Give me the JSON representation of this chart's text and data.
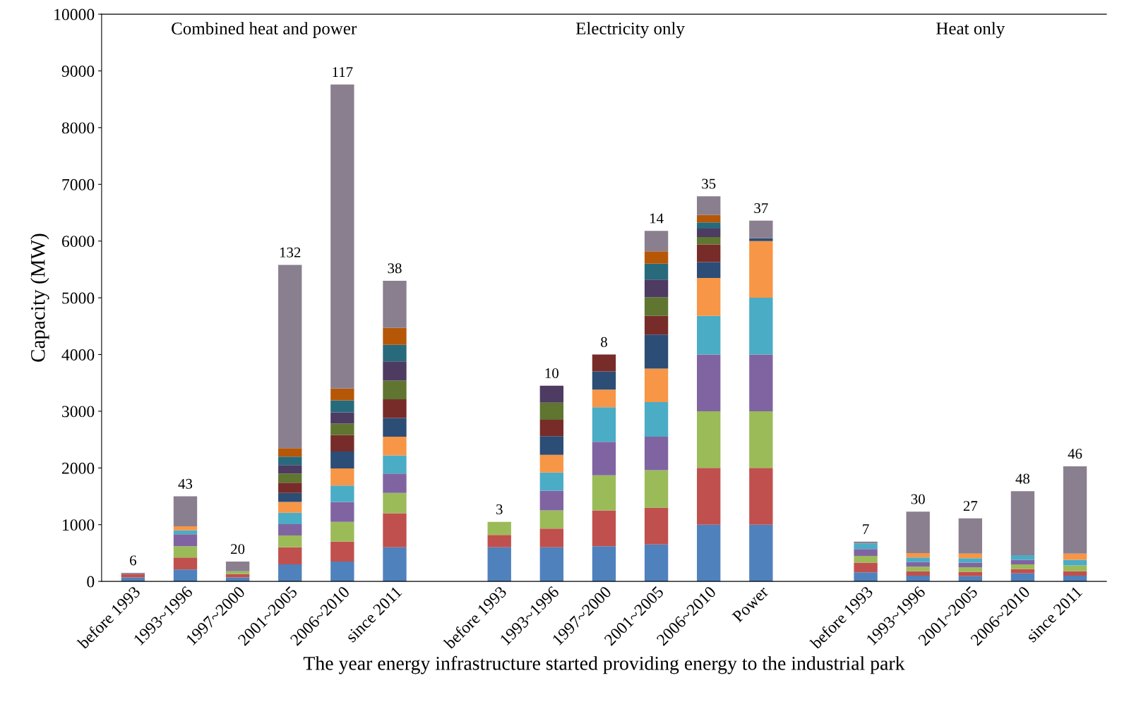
{
  "chart_data": {
    "type": "bar",
    "stacked": true,
    "xlabel": "The year energy infrastructure started providing energy to the industrial park",
    "ylabel": "Capacity (MW)",
    "annotations": [
      "Combined heat and power",
      "Electricity only",
      "Heat only",
      "6",
      "43",
      "20",
      "132",
      "117",
      "38",
      "3",
      "10",
      "8",
      "14",
      "35",
      "37",
      "7",
      "30",
      "27",
      "48",
      "46"
    ],
    "categories": [
      "before 1993",
      "1993~1996",
      "1997~2000",
      "2001~2005",
      "2006~2010",
      "since 2011",
      null,
      "before 1993",
      "1993~1996",
      "1997~2000",
      "2001~2005",
      "2006~2010",
      "Power",
      null,
      "before 1993",
      "1993~1996",
      "2001~2005",
      "2006~2010",
      "since 2011"
    ],
    "ylim": [
      0,
      10000
    ],
    "yticks": [
      0,
      1000,
      2000,
      3000,
      4000,
      5000,
      6000,
      7000,
      8000,
      9000,
      10000
    ],
    "grid": false,
    "legend": false,
    "series": [
      {
        "color": "#4f81bd",
        "values": [
          70,
          210,
          70,
          300,
          350,
          600,
          null,
          600,
          600,
          620,
          650,
          1000,
          1000,
          null,
          160,
          100,
          90,
          140,
          100
        ]
      },
      {
        "color": "#c0504d",
        "values": [
          60,
          210,
          60,
          300,
          350,
          600,
          null,
          220,
          330,
          630,
          650,
          1000,
          1000,
          null,
          170,
          80,
          80,
          80,
          80
        ]
      },
      {
        "color": "#9bbb59",
        "values": [
          null,
          200,
          50,
          210,
          350,
          360,
          null,
          230,
          320,
          620,
          660,
          1000,
          1000,
          null,
          120,
          80,
          80,
          80,
          100
        ]
      },
      {
        "color": "#8064a2",
        "values": [
          null,
          210,
          null,
          200,
          350,
          340,
          null,
          null,
          350,
          590,
          590,
          1000,
          1000,
          null,
          120,
          80,
          80,
          80,
          null
        ]
      },
      {
        "color": "#4bacc6",
        "values": [
          null,
          70,
          null,
          200,
          290,
          320,
          null,
          null,
          320,
          610,
          610,
          680,
          1000,
          null,
          100,
          80,
          80,
          80,
          100
        ]
      },
      {
        "color": "#f79646",
        "values": [
          null,
          70,
          null,
          190,
          300,
          330,
          null,
          null,
          310,
          310,
          590,
          670,
          1000,
          null,
          null,
          80,
          80,
          null,
          110
        ]
      },
      {
        "color": "#2c4d75",
        "values": [
          null,
          null,
          null,
          160,
          300,
          330,
          null,
          null,
          330,
          320,
          600,
          280,
          50,
          null,
          null,
          null,
          null,
          null,
          null
        ]
      },
      {
        "color": "#772c2a",
        "values": [
          null,
          null,
          null,
          180,
          290,
          330,
          null,
          null,
          290,
          300,
          330,
          310,
          null,
          null,
          null,
          null,
          null,
          null,
          null
        ]
      },
      {
        "color": "#5f7530",
        "values": [
          null,
          null,
          null,
          160,
          200,
          330,
          null,
          null,
          300,
          null,
          330,
          130,
          null,
          null,
          null,
          null,
          null,
          null,
          null
        ]
      },
      {
        "color": "#4d3b62",
        "values": [
          null,
          null,
          null,
          150,
          200,
          340,
          null,
          null,
          300,
          null,
          310,
          150,
          null,
          null,
          null,
          null,
          null,
          null,
          null
        ]
      },
      {
        "color": "#276a7c",
        "values": [
          null,
          null,
          null,
          150,
          210,
          290,
          null,
          null,
          null,
          null,
          280,
          110,
          null,
          null,
          null,
          null,
          null,
          null,
          null
        ]
      },
      {
        "color": "#b65708",
        "values": [
          null,
          null,
          null,
          150,
          210,
          300,
          null,
          null,
          null,
          null,
          220,
          130,
          null,
          null,
          null,
          null,
          null,
          null,
          null
        ]
      },
      {
        "color": "#8a7f8f",
        "values": [
          20,
          530,
          170,
          3230,
          5360,
          830,
          null,
          null,
          null,
          null,
          360,
          330,
          310,
          null,
          30,
          730,
          620,
          1130,
          1540
        ]
      }
    ]
  }
}
